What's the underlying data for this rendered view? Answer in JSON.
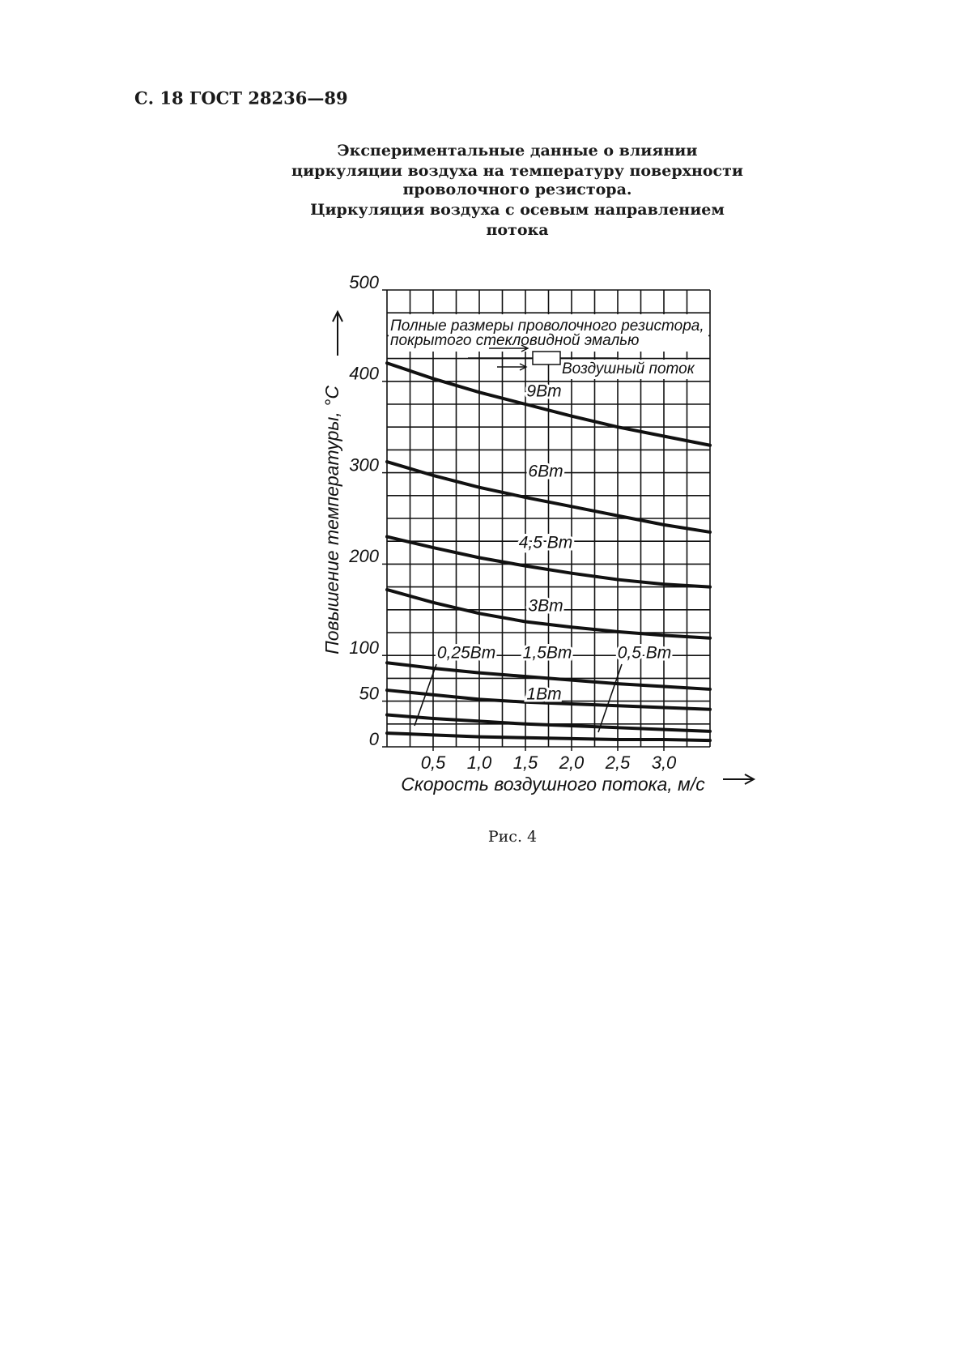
{
  "header": "С. 18 ГОСТ 28236—89",
  "title": [
    "Экспериментальные данные о влиянии",
    "циркуляции воздуха на температуру поверхности",
    "проволочного резистора.",
    "Циркуляция воздуха с осевым направлением",
    "потока"
  ],
  "caption": "Рис. 4",
  "chart_data": {
    "type": "line",
    "x_label": "Скорость воздушного потока, м/с",
    "y_label": "Повышение температуры, °С",
    "annotations": [
      "Полные размеры проволочного резистора,",
      "покрытого стекловидной эмалью",
      "Воздушный поток"
    ],
    "x": [
      0,
      0.5,
      1.0,
      1.5,
      2.0,
      2.5,
      3.0,
      3.5
    ],
    "series": [
      {
        "name": "9Вт",
        "color": "#111111",
        "values": [
          420,
          403,
          388,
          375,
          362,
          350,
          340,
          330
        ]
      },
      {
        "name": "6Вт",
        "color": "#111111",
        "values": [
          312,
          297,
          284,
          273,
          263,
          253,
          243,
          235
        ]
      },
      {
        "name": "4,5 Вт",
        "color": "#111111",
        "values": [
          230,
          218,
          207,
          198,
          190,
          183,
          178,
          175
        ]
      },
      {
        "name": "3Вт",
        "color": "#111111",
        "values": [
          172,
          158,
          146,
          137,
          131,
          126,
          122,
          119
        ]
      },
      {
        "name": "1,5Вт",
        "color": "#111111",
        "values": [
          92,
          86,
          81,
          77,
          73,
          69,
          66,
          63
        ]
      },
      {
        "name": "1Вт",
        "color": "#111111",
        "values": [
          62,
          57,
          52,
          49,
          47,
          45,
          43,
          41
        ]
      },
      {
        "name": "0,5 Вт",
        "color": "#111111",
        "values": [
          35,
          31,
          28,
          25,
          23,
          21,
          19,
          17
        ]
      },
      {
        "name": "0,25Вт",
        "color": "#111111",
        "values": [
          15,
          13,
          11,
          10,
          9,
          8,
          8,
          7
        ]
      }
    ],
    "xlim": [
      0,
      3.5
    ],
    "ylim": [
      0,
      500
    ],
    "xticks": [
      {
        "value": 0.5,
        "label": "0,5"
      },
      {
        "value": 1.0,
        "label": "1,0"
      },
      {
        "value": 1.5,
        "label": "1,5"
      },
      {
        "value": 2.0,
        "label": "2,0"
      },
      {
        "value": 2.5,
        "label": "2,5"
      },
      {
        "value": 3.0,
        "label": "3,0"
      }
    ],
    "yticks": [
      0,
      50,
      100,
      200,
      300,
      400,
      500
    ],
    "xgrid": [
      0,
      0.25,
      0.5,
      0.75,
      1.0,
      1.25,
      1.5,
      1.75,
      2.0,
      2.25,
      2.5,
      2.75,
      3.0,
      3.25,
      3.5
    ],
    "ygrid": [
      0,
      25,
      50,
      75,
      100,
      125,
      150,
      175,
      200,
      225,
      250,
      275,
      300,
      325,
      350,
      375,
      400,
      425,
      450,
      475,
      500
    ],
    "grid": true
  }
}
